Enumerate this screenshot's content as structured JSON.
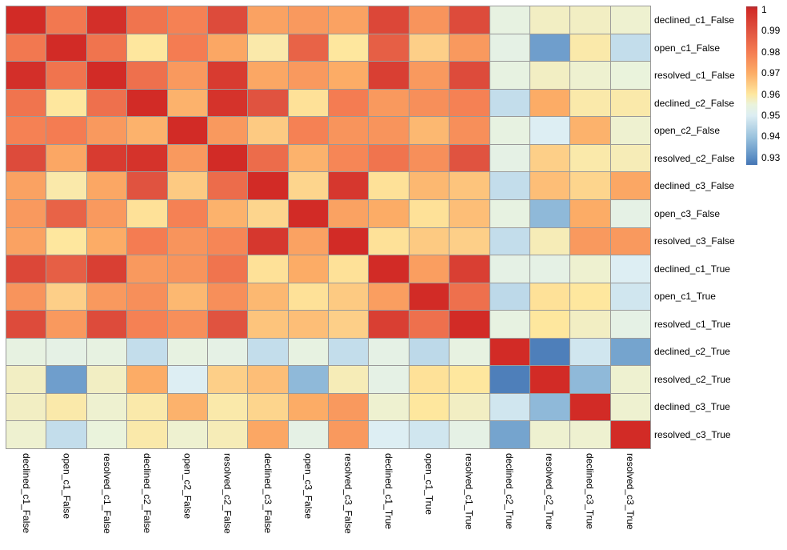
{
  "chart_data": {
    "type": "heatmap",
    "title": "",
    "description": "correlation matrix heatmap of case status features",
    "labels": [
      "declined_c1_False",
      "open_c1_False",
      "resolved_c1_False",
      "declined_c2_False",
      "open_c2_False",
      "resolved_c2_False",
      "declined_c3_False",
      "open_c3_False",
      "resolved_c3_False",
      "declined_c1_True",
      "open_c1_True",
      "resolved_c1_True",
      "declined_c2_True",
      "resolved_c2_True",
      "declined_c3_True",
      "resolved_c3_True"
    ],
    "col_labels_same_as_rows": true,
    "matrix": [
      [
        1.0,
        0.981,
        0.999,
        0.982,
        0.979,
        0.992,
        0.972,
        0.974,
        0.972,
        0.993,
        0.975,
        0.992,
        0.954,
        0.957,
        0.957,
        0.956
      ],
      [
        0.981,
        1.0,
        0.982,
        0.96,
        0.98,
        0.971,
        0.959,
        0.986,
        0.96,
        0.987,
        0.964,
        0.974,
        0.953,
        0.933,
        0.959,
        0.946
      ],
      [
        0.999,
        0.982,
        1.0,
        0.983,
        0.974,
        0.996,
        0.971,
        0.974,
        0.97,
        0.995,
        0.974,
        0.992,
        0.954,
        0.957,
        0.956,
        0.955
      ],
      [
        0.982,
        0.96,
        0.983,
        1.0,
        0.969,
        0.998,
        0.99,
        0.961,
        0.98,
        0.974,
        0.976,
        0.979,
        0.946,
        0.97,
        0.959,
        0.959
      ],
      [
        0.979,
        0.98,
        0.974,
        0.969,
        1.0,
        0.974,
        0.965,
        0.979,
        0.975,
        0.975,
        0.968,
        0.976,
        0.954,
        0.95,
        0.969,
        0.956
      ],
      [
        0.992,
        0.971,
        0.996,
        0.998,
        0.974,
        1.0,
        0.984,
        0.969,
        0.978,
        0.982,
        0.976,
        0.99,
        0.953,
        0.964,
        0.959,
        0.958
      ],
      [
        0.972,
        0.959,
        0.971,
        0.99,
        0.965,
        0.984,
        1.0,
        0.963,
        0.997,
        0.961,
        0.968,
        0.966,
        0.946,
        0.967,
        0.963,
        0.971
      ],
      [
        0.974,
        0.986,
        0.974,
        0.961,
        0.979,
        0.969,
        0.963,
        1.0,
        0.972,
        0.97,
        0.961,
        0.967,
        0.954,
        0.938,
        0.97,
        0.953
      ],
      [
        0.972,
        0.96,
        0.97,
        0.98,
        0.975,
        0.978,
        0.997,
        0.972,
        1.0,
        0.961,
        0.965,
        0.964,
        0.946,
        0.958,
        0.974,
        0.974
      ],
      [
        0.993,
        0.987,
        0.995,
        0.974,
        0.975,
        0.982,
        0.961,
        0.97,
        0.961,
        1.0,
        0.973,
        0.995,
        0.953,
        0.953,
        0.956,
        0.95
      ],
      [
        0.975,
        0.964,
        0.974,
        0.976,
        0.968,
        0.976,
        0.968,
        0.961,
        0.965,
        0.973,
        1.0,
        0.983,
        0.945,
        0.961,
        0.96,
        0.948
      ],
      [
        0.992,
        0.974,
        0.992,
        0.979,
        0.976,
        0.99,
        0.966,
        0.967,
        0.964,
        0.995,
        0.983,
        1.0,
        0.954,
        0.96,
        0.957,
        0.953
      ],
      [
        0.954,
        0.953,
        0.954,
        0.946,
        0.954,
        0.953,
        0.946,
        0.954,
        0.946,
        0.953,
        0.945,
        0.954,
        1.0,
        0.927,
        0.948,
        0.934
      ],
      [
        0.957,
        0.933,
        0.957,
        0.97,
        0.95,
        0.964,
        0.967,
        0.938,
        0.958,
        0.953,
        0.961,
        0.96,
        0.927,
        1.0,
        0.938,
        0.956
      ],
      [
        0.957,
        0.959,
        0.956,
        0.959,
        0.969,
        0.959,
        0.963,
        0.97,
        0.974,
        0.956,
        0.96,
        0.957,
        0.948,
        0.938,
        1.0,
        0.956
      ],
      [
        0.956,
        0.946,
        0.955,
        0.959,
        0.956,
        0.958,
        0.971,
        0.953,
        0.974,
        0.95,
        0.948,
        0.953,
        0.934,
        0.956,
        0.956,
        1.0
      ]
    ],
    "value_range": [
      0.925,
      1.0
    ],
    "colorbar": {
      "orientation": "vertical",
      "position": "top-right",
      "tick_labels": [
        "1",
        "0.99",
        "0.98",
        "0.97",
        "0.96",
        "0.95",
        "0.94",
        "0.93"
      ],
      "tick_values": [
        1,
        0.99,
        0.98,
        0.97,
        0.96,
        0.95,
        0.94,
        0.93
      ]
    },
    "colormap": {
      "name": "RdYlBu reversed",
      "stops": [
        [
          0.925,
          "#4575b4"
        ],
        [
          0.93,
          "#5b8ec4"
        ],
        [
          0.94,
          "#9cc4de"
        ],
        [
          0.95,
          "#ddeef3"
        ],
        [
          0.955,
          "#eaf3dc"
        ],
        [
          0.96,
          "#fee79e"
        ],
        [
          0.97,
          "#fcac66"
        ],
        [
          0.98,
          "#f47c52"
        ],
        [
          0.99,
          "#e05340"
        ],
        [
          1.0,
          "#d22b26"
        ],
        [
          1.002,
          "#aa2e32"
        ]
      ]
    },
    "grid_line_color": "#9a9a9a",
    "background_color": "#ffffff",
    "layout_hints": {
      "row_labels_side": "right",
      "col_labels_rotation_deg": 90,
      "grid_on": true
    }
  }
}
